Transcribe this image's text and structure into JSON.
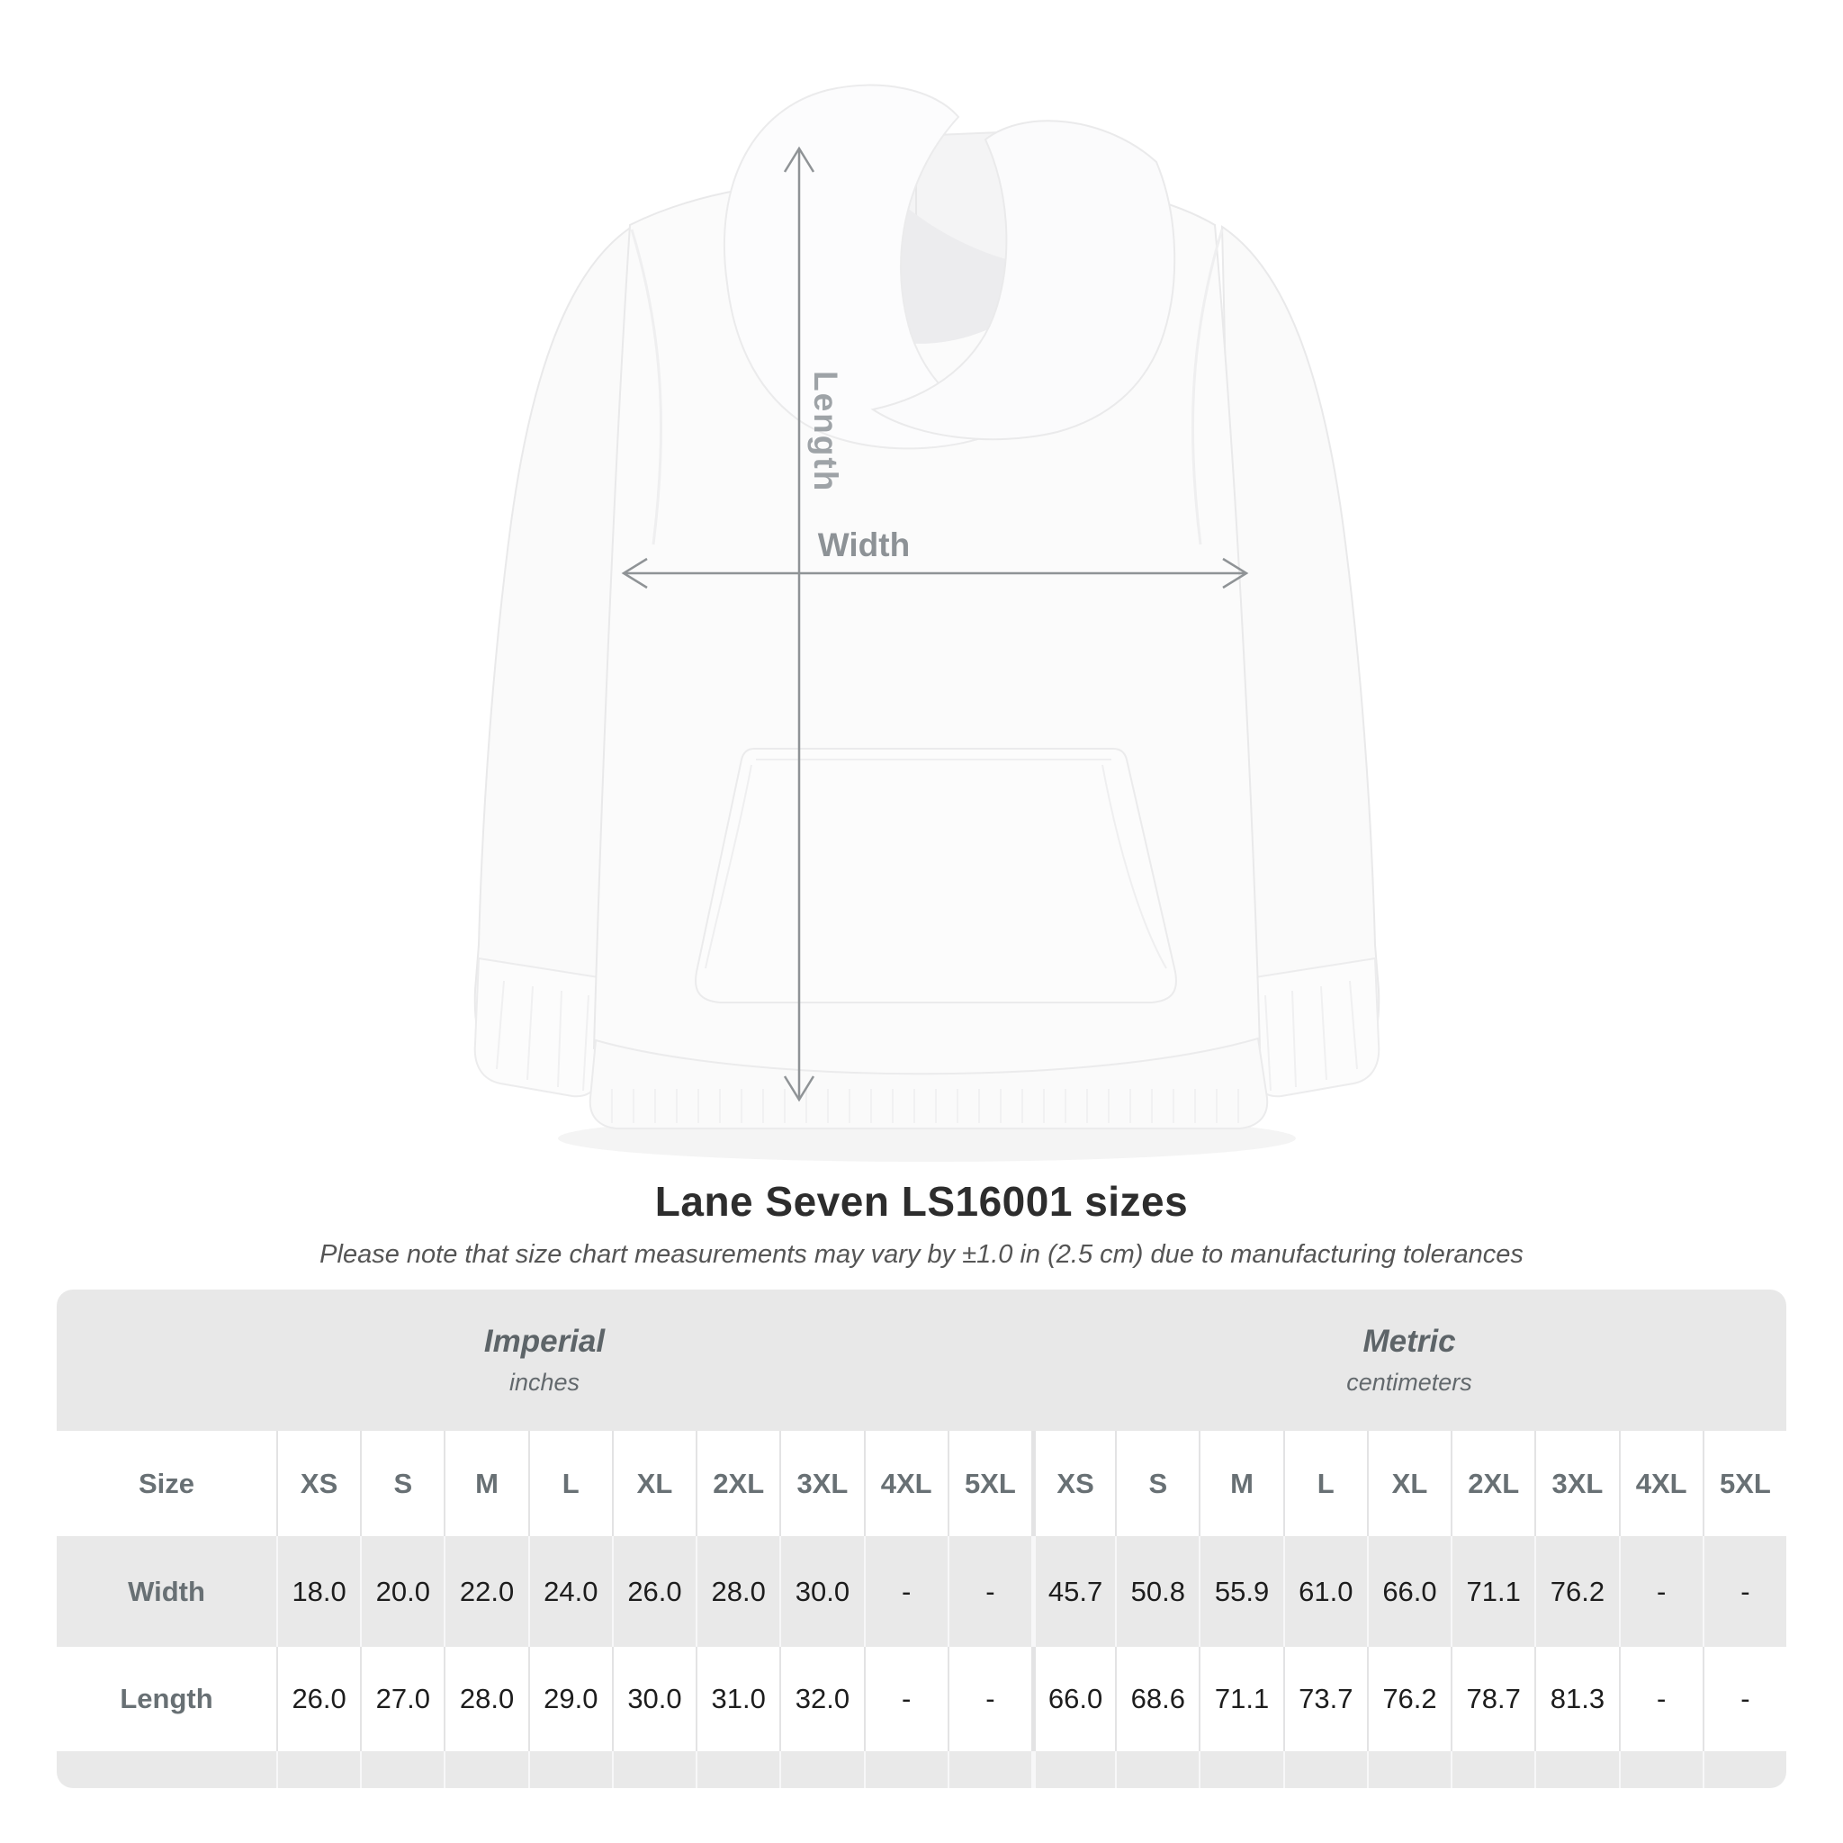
{
  "figure": {
    "length_label": "Length",
    "width_label": "Width",
    "arrow_color": "#8f9396",
    "label_color": "#9aa0a4"
  },
  "chart_data": {
    "type": "table",
    "title": "Lane Seven LS16001 sizes",
    "note": "Please note that size chart measurements may vary by ±1.0 in (2.5 cm) due to manufacturing tolerances",
    "size_header": "Size",
    "column_groups": [
      {
        "label": "Imperial",
        "unit": "inches"
      },
      {
        "label": "Metric",
        "unit": "centimeters"
      }
    ],
    "sizes": [
      "XS",
      "S",
      "M",
      "L",
      "XL",
      "2XL",
      "3XL",
      "4XL",
      "5XL"
    ],
    "rows": [
      {
        "label": "Width",
        "imperial": [
          "18.0",
          "20.0",
          "22.0",
          "24.0",
          "26.0",
          "28.0",
          "30.0",
          "-",
          "-"
        ],
        "metric": [
          "45.7",
          "50.8",
          "55.9",
          "61.0",
          "66.0",
          "71.1",
          "76.2",
          "-",
          "-"
        ]
      },
      {
        "label": "Length",
        "imperial": [
          "26.0",
          "27.0",
          "28.0",
          "29.0",
          "30.0",
          "31.0",
          "32.0",
          "-",
          "-"
        ],
        "metric": [
          "66.0",
          "68.6",
          "71.1",
          "73.7",
          "76.2",
          "78.7",
          "81.3",
          "-",
          "-"
        ]
      }
    ],
    "colors": {
      "band_background": "#e8e8e8",
      "alt_row_background": "#e9e9e9",
      "header_text": "#687074",
      "value_text": "#1d1d1d"
    }
  }
}
